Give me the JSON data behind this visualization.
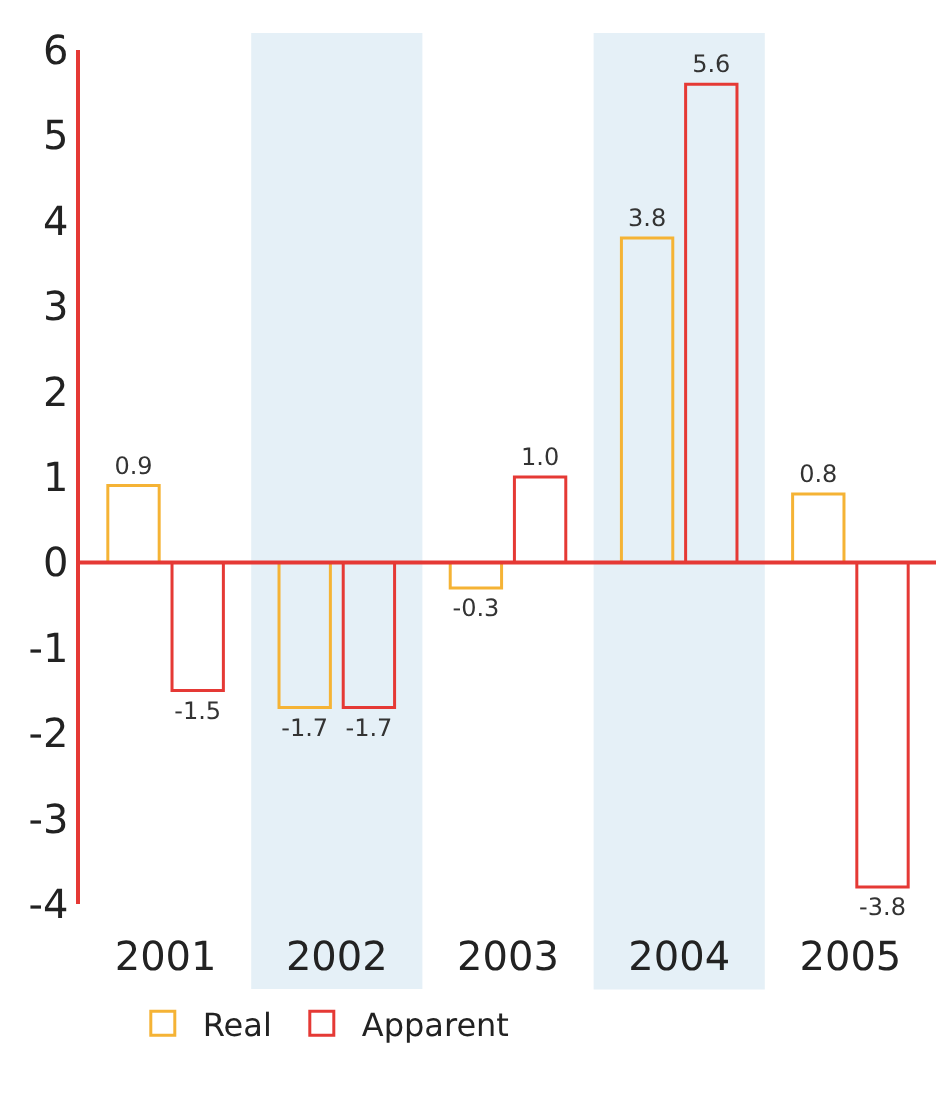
{
  "chart_data": {
    "type": "bar",
    "categories": [
      "2001",
      "2002",
      "2003",
      "2004",
      "2005"
    ],
    "series": [
      {
        "name": "Real",
        "color": "#f5b335",
        "values": [
          0.9,
          -1.7,
          -0.3,
          3.8,
          0.8
        ],
        "value_labels": [
          "0.9",
          "-1.7",
          "-0.3",
          "3.8",
          "0.8"
        ]
      },
      {
        "name": "Apparent",
        "color": "#e53935",
        "values": [
          -1.5,
          -1.7,
          1.0,
          5.6,
          -3.8
        ],
        "value_labels": [
          "-1.5",
          "-1.7",
          "1.0",
          "5.6",
          "-3.8"
        ]
      }
    ],
    "ylim": [
      -4,
      6
    ],
    "yticks": [
      -4,
      -3,
      -2,
      -1,
      0,
      1,
      2,
      3,
      4,
      5,
      6
    ],
    "bands": [
      {
        "axis": "x",
        "from": "2002",
        "to": "2002",
        "color": "#e5f0f7"
      },
      {
        "axis": "x",
        "from": "2004",
        "to": "2004",
        "color": "#e5f0f7"
      }
    ],
    "ref_lines": [
      {
        "axis": "y",
        "value": 0,
        "color": "#e53935"
      }
    ],
    "grid": false,
    "legend": "bottom"
  }
}
